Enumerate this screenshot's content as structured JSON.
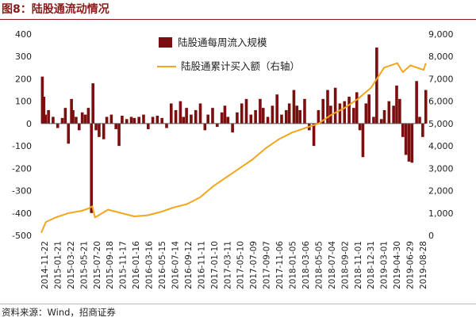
{
  "figure": {
    "title": "图8：陆股通流动情况",
    "source": "资料来源：Wind，招商证券"
  },
  "colors": {
    "title": "#8b1a1a",
    "bar": "#7b0f10",
    "line": "#f2a51d"
  },
  "chart_data": {
    "type": "bar+line",
    "title": "",
    "xlabel": "",
    "legend_position": "top-center",
    "grid": false,
    "x_tick_labels": [
      "2014-11-22",
      "2015-01-21",
      "2015-03-22",
      "2015-05-21",
      "2015-07-20",
      "2015-09-18",
      "2015-11-17",
      "2016-01-16",
      "2016-03-16",
      "2016-05-15",
      "2016-07-14",
      "2016-09-12",
      "2016-11-11",
      "2017-01-10",
      "2017-03-11",
      "2017-05-10",
      "2017-07-09",
      "2017-09-07",
      "2017-11-06",
      "2018-01-05",
      "2018-03-06",
      "2018-05-05",
      "2018-07-04",
      "2018-09-02",
      "2018-11-01",
      "2018-12-31",
      "2019-03-01",
      "2019-04-30",
      "2019-06-29",
      "2019-08-28"
    ],
    "y_left": {
      "range": [
        -500,
        400
      ],
      "ticks": [
        400,
        300,
        200,
        100,
        0,
        -100,
        -200,
        -300,
        -400,
        -500
      ]
    },
    "y_right": {
      "range": [
        0,
        9000
      ],
      "ticks": [
        "9,000",
        "8,000",
        "7,000",
        "6,000",
        "5,000",
        "4,000",
        "3,000",
        "2,000",
        "1,000",
        "0"
      ]
    },
    "series": [
      {
        "name": "陆股通每周流入规模",
        "type": "bar",
        "axis": "left",
        "x": [
          "2014-11-22",
          "2014-11-29",
          "2014-12-06",
          "2014-12-20",
          "2015-01-10",
          "2015-01-31",
          "2015-02-21",
          "2015-03-07",
          "2015-03-21",
          "2015-04-04",
          "2015-04-11",
          "2015-04-25",
          "2015-05-09",
          "2015-05-23",
          "2015-06-06",
          "2015-06-20",
          "2015-07-04",
          "2015-07-11",
          "2015-07-25",
          "2015-08-08",
          "2015-08-29",
          "2015-09-12",
          "2015-10-03",
          "2015-10-24",
          "2015-11-07",
          "2015-11-21",
          "2015-12-12",
          "2016-01-02",
          "2016-01-16",
          "2016-02-06",
          "2016-02-27",
          "2016-03-19",
          "2016-04-09",
          "2016-04-30",
          "2016-05-21",
          "2016-06-11",
          "2016-07-02",
          "2016-07-23",
          "2016-08-13",
          "2016-08-27",
          "2016-09-10",
          "2016-10-01",
          "2016-10-22",
          "2016-11-12",
          "2016-12-03",
          "2016-12-17",
          "2017-01-07",
          "2017-01-28",
          "2017-02-18",
          "2017-03-04",
          "2017-03-18",
          "2017-04-08",
          "2017-04-29",
          "2017-05-20",
          "2017-06-10",
          "2017-07-01",
          "2017-07-22",
          "2017-08-12",
          "2017-08-26",
          "2017-09-16",
          "2017-10-07",
          "2017-10-28",
          "2017-11-18",
          "2017-12-09",
          "2017-12-23",
          "2018-01-13",
          "2018-01-27",
          "2018-02-10",
          "2018-03-03",
          "2018-03-24",
          "2018-04-14",
          "2018-05-05",
          "2018-05-26",
          "2018-06-16",
          "2018-06-30",
          "2018-07-21",
          "2018-08-11",
          "2018-09-01",
          "2018-09-22",
          "2018-10-13",
          "2018-10-27",
          "2018-11-10",
          "2018-11-24",
          "2018-12-08",
          "2018-12-22",
          "2019-01-12",
          "2019-01-26",
          "2019-02-16",
          "2019-03-02",
          "2019-03-23",
          "2019-04-13",
          "2019-04-27",
          "2019-05-11",
          "2019-05-25",
          "2019-06-08",
          "2019-06-22",
          "2019-07-06",
          "2019-07-27",
          "2019-08-10",
          "2019-08-24",
          "2019-09-07"
        ],
        "values": [
          210,
          120,
          40,
          60,
          30,
          -20,
          25,
          70,
          -90,
          110,
          60,
          30,
          -30,
          50,
          40,
          70,
          -400,
          180,
          -30,
          -60,
          -70,
          30,
          40,
          -25,
          -100,
          35,
          20,
          30,
          25,
          30,
          40,
          -25,
          30,
          35,
          25,
          -20,
          90,
          60,
          100,
          30,
          70,
          40,
          60,
          90,
          -30,
          40,
          70,
          -15,
          50,
          80,
          30,
          -40,
          50,
          90,
          110,
          40,
          60,
          110,
          70,
          30,
          80,
          130,
          40,
          60,
          90,
          150,
          80,
          60,
          110,
          -30,
          -100,
          60,
          110,
          150,
          80,
          160,
          90,
          100,
          120,
          70,
          140,
          -30,
          -150,
          90,
          130,
          30,
          340,
          20,
          60,
          100,
          80,
          170,
          110,
          -60,
          -140,
          -170,
          -175,
          190,
          30,
          -60,
          150
        ]
      },
      {
        "name": "陆股通累计买入额（右轴）",
        "type": "line",
        "axis": "right",
        "x": [
          "2014-11-17",
          "2014-12-08",
          "2015-01-21",
          "2015-03-22",
          "2015-05-21",
          "2015-06-20",
          "2015-07-08",
          "2015-07-20",
          "2015-09-18",
          "2015-11-17",
          "2016-01-16",
          "2016-03-16",
          "2016-05-15",
          "2016-07-14",
          "2016-09-12",
          "2016-11-11",
          "2017-01-10",
          "2017-03-11",
          "2017-05-10",
          "2017-07-09",
          "2017-09-07",
          "2017-11-06",
          "2018-01-05",
          "2018-03-06",
          "2018-05-05",
          "2018-07-04",
          "2018-09-02",
          "2018-11-01",
          "2018-12-31",
          "2019-03-01",
          "2019-04-30",
          "2019-05-25",
          "2019-06-29",
          "2019-08-28",
          "2019-09-07"
        ],
        "values": [
          120,
          600,
          800,
          1000,
          1100,
          1200,
          1300,
          800,
          1150,
          1000,
          850,
          900,
          1050,
          1250,
          1400,
          1700,
          2200,
          2600,
          3000,
          3400,
          3900,
          4300,
          4600,
          4800,
          5000,
          5400,
          5700,
          6100,
          6600,
          7500,
          7700,
          7300,
          7600,
          7400,
          7700
        ]
      }
    ]
  }
}
